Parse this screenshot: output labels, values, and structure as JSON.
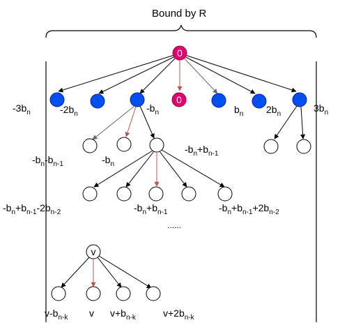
{
  "title": "Bound by R",
  "colors": {
    "root": "#e0006f",
    "blue": "#0050ef",
    "red_edge": "#b85450",
    "black": "#000000",
    "gray": "#666666"
  },
  "root": {
    "label": "0"
  },
  "level1": {
    "zero_label": "0",
    "labels": {
      "m3": {
        "main": "-3b",
        "sub": "n"
      },
      "m2": {
        "main": "-2b",
        "sub": "n"
      },
      "m1": {
        "main": "-b",
        "sub": "n"
      },
      "p1": {
        "main": "b",
        "sub": "n"
      },
      "p2": {
        "main": "2b",
        "sub": "n"
      },
      "p3": {
        "main": "3b",
        "sub": "n"
      }
    }
  },
  "level2": {
    "left": {
      "main": "-b",
      "sub": "n",
      "mid": "-b",
      "sub2": "n-1"
    },
    "mid": {
      "main": "-b",
      "sub": "n"
    },
    "right": {
      "main": "-b",
      "sub": "n",
      "mid": "+b",
      "sub2": "n-1"
    }
  },
  "level3": {
    "left": {
      "a": "-b",
      "as": "n",
      "b": "+b",
      "bs": "n-1",
      "c": "-2b",
      "cs": "n-2"
    },
    "mid": {
      "a": "-b",
      "as": "n",
      "b": "+b",
      "bs": "n-1"
    },
    "right": {
      "a": "-b",
      "as": "n",
      "b": "+b",
      "bs": "n-1",
      "c": "+2b",
      "cs": "n-2"
    },
    "ellipsis": "......"
  },
  "vnode": {
    "label": "v",
    "children": {
      "c1": {
        "main": "v-b",
        "sub": "n-k"
      },
      "c2": {
        "main": "v"
      },
      "c3": {
        "main": "v+b",
        "sub": "n-k"
      },
      "c4": {
        "main": "v+2b",
        "sub": "n-k"
      }
    }
  }
}
